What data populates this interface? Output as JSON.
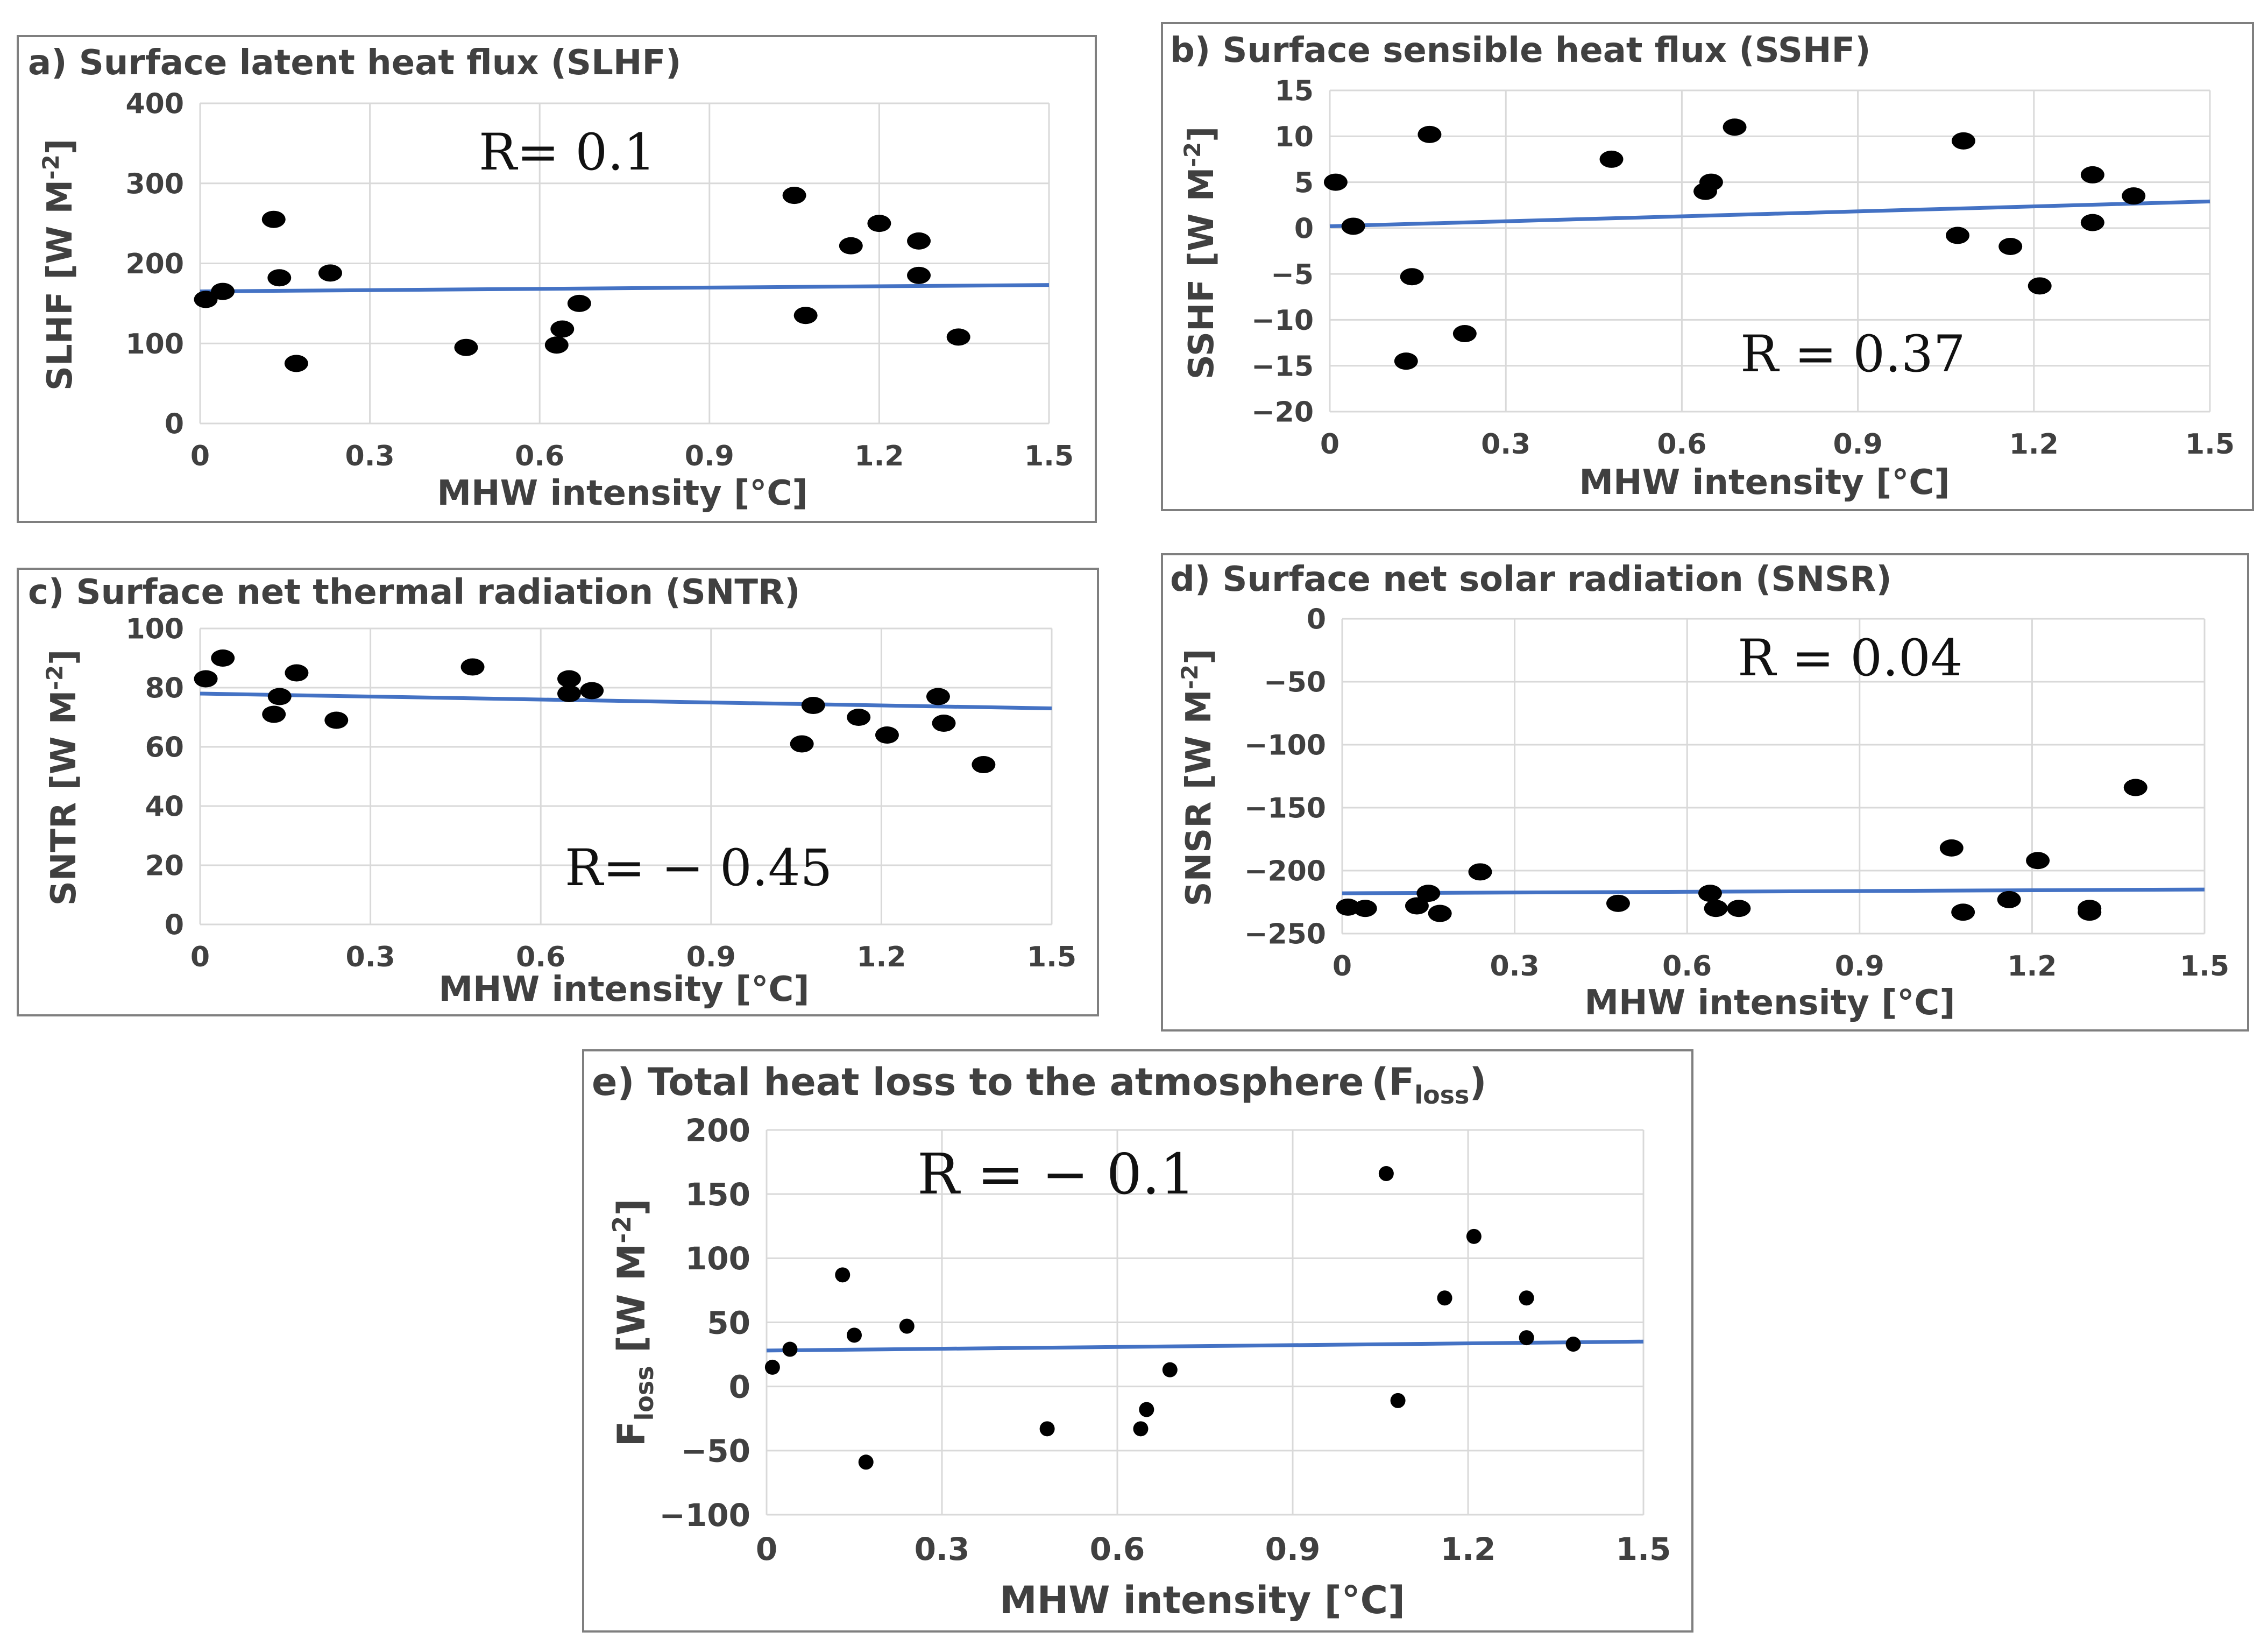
{
  "chart_data": [
    {
      "type": "scatter",
      "panel": "a",
      "title": "a) Surface latent heat flux (SLHF)",
      "xlabel": "MHW intensity [°C]",
      "ylabel": "SLHF [W M",
      "ylabel_sup": "-2",
      "ylabel_end": "]",
      "annotation": "R= 0.1",
      "xlim": [
        0,
        1.5
      ],
      "ylim": [
        0,
        400
      ],
      "x_ticks": [
        "0",
        "0.3",
        "0.6",
        "0.9",
        "1.2",
        "1.5"
      ],
      "y_ticks": [
        "400",
        "300",
        "200",
        "100",
        "0"
      ],
      "points": [
        [
          0.01,
          155
        ],
        [
          0.04,
          165
        ],
        [
          0.13,
          255
        ],
        [
          0.14,
          182
        ],
        [
          0.17,
          75
        ],
        [
          0.23,
          188
        ],
        [
          0.47,
          95
        ],
        [
          0.63,
          98
        ],
        [
          0.64,
          118
        ],
        [
          0.67,
          150
        ],
        [
          1.05,
          285
        ],
        [
          1.07,
          135
        ],
        [
          1.15,
          222
        ],
        [
          1.2,
          250
        ],
        [
          1.27,
          228
        ],
        [
          1.27,
          185
        ],
        [
          1.34,
          108
        ]
      ],
      "trendline": [
        [
          0,
          165
        ],
        [
          1.5,
          173
        ]
      ],
      "marker_color": "#000000",
      "trend_color": "#4472C4"
    },
    {
      "type": "scatter",
      "panel": "b",
      "title": "b) Surface sensible heat flux  (SSHF)",
      "xlabel": "MHW intensity [°C]",
      "ylabel": "SSHF [W M",
      "ylabel_sup": "-2",
      "ylabel_end": "]",
      "annotation": "R = 0.37",
      "xlim": [
        0,
        1.5
      ],
      "ylim": [
        -20,
        15
      ],
      "x_ticks": [
        "0",
        "0.3",
        "0.6",
        "0.9",
        "1.2",
        "1.5"
      ],
      "y_ticks": [
        "15",
        "10",
        "5",
        "0",
        "−5",
        "−10",
        "−15",
        "−20"
      ],
      "points": [
        [
          0.01,
          5
        ],
        [
          0.04,
          0.2
        ],
        [
          0.13,
          -14.5
        ],
        [
          0.14,
          -5.3
        ],
        [
          0.17,
          10.2
        ],
        [
          0.23,
          -11.5
        ],
        [
          0.48,
          7.5
        ],
        [
          0.64,
          4
        ],
        [
          0.65,
          5
        ],
        [
          0.69,
          11
        ],
        [
          1.07,
          -0.8
        ],
        [
          1.08,
          9.5
        ],
        [
          1.16,
          -2
        ],
        [
          1.21,
          -6.3
        ],
        [
          1.3,
          5.8
        ],
        [
          1.3,
          0.6
        ],
        [
          1.37,
          3.5
        ]
      ],
      "trendline": [
        [
          0,
          0.2
        ],
        [
          1.5,
          2.9
        ]
      ],
      "marker_color": "#000000",
      "trend_color": "#4472C4"
    },
    {
      "type": "scatter",
      "panel": "c",
      "title": "c) Surface net thermal radiation (SNTR)",
      "xlabel": "MHW intensity [°C]",
      "ylabel": "SNTR [W M",
      "ylabel_sup": "-2",
      "ylabel_end": "]",
      "annotation": "R= − 0.45",
      "xlim": [
        0,
        1.5
      ],
      "ylim": [
        0,
        100
      ],
      "x_ticks": [
        "0",
        "0.3",
        "0.6",
        "0.9",
        "1.2",
        "1.5"
      ],
      "y_ticks": [
        "100",
        "80",
        "60",
        "40",
        "20",
        "0"
      ],
      "points": [
        [
          0.01,
          83
        ],
        [
          0.04,
          90
        ],
        [
          0.13,
          71
        ],
        [
          0.14,
          77
        ],
        [
          0.17,
          85
        ],
        [
          0.24,
          69
        ],
        [
          0.48,
          87
        ],
        [
          0.65,
          78
        ],
        [
          0.65,
          83
        ],
        [
          0.69,
          79
        ],
        [
          1.06,
          61
        ],
        [
          1.08,
          74
        ],
        [
          1.16,
          70
        ],
        [
          1.21,
          64
        ],
        [
          1.3,
          77
        ],
        [
          1.31,
          68
        ],
        [
          1.38,
          54
        ]
      ],
      "trendline": [
        [
          0,
          78
        ],
        [
          1.5,
          73
        ]
      ],
      "marker_color": "#000000",
      "trend_color": "#4472C4"
    },
    {
      "type": "scatter",
      "panel": "d",
      "title": "d) Surface net solar radiation (SNSR)",
      "xlabel": "MHW intensity [°C]",
      "ylabel": "SNSR [W M",
      "ylabel_sup": "-2",
      "ylabel_end": "]",
      "annotation": "R = 0.04",
      "xlim": [
        0,
        1.5
      ],
      "ylim": [
        -250,
        0
      ],
      "x_ticks": [
        "0",
        "0.3",
        "0.6",
        "0.9",
        "1.2",
        "1.5"
      ],
      "y_ticks": [
        "0",
        "−50",
        "−100",
        "−150",
        "−200",
        "−250"
      ],
      "points": [
        [
          0.01,
          -229
        ],
        [
          0.04,
          -230
        ],
        [
          0.13,
          -228
        ],
        [
          0.15,
          -218
        ],
        [
          0.17,
          -234
        ],
        [
          0.24,
          -201
        ],
        [
          0.48,
          -226
        ],
        [
          0.64,
          -218
        ],
        [
          0.65,
          -230
        ],
        [
          0.69,
          -230
        ],
        [
          1.06,
          -182
        ],
        [
          1.08,
          -233
        ],
        [
          1.16,
          -223
        ],
        [
          1.21,
          -192
        ],
        [
          1.3,
          -230
        ],
        [
          1.3,
          -233
        ],
        [
          1.38,
          -134
        ]
      ],
      "trendline": [
        [
          0,
          -218
        ],
        [
          1.5,
          -215
        ]
      ],
      "marker_color": "#000000",
      "trend_color": "#4472C4"
    },
    {
      "type": "scatter",
      "panel": "e",
      "title": "e) Total heat loss to the atmosphere",
      "title_symbol": "(F",
      "title_sub": "loss",
      "title_end": ")",
      "xlabel": "MHW intensity [°C]",
      "ylabel_symbol": "F",
      "ylabel_sub": "loss",
      "ylabel": " [W M",
      "ylabel_sup": "-2",
      "ylabel_end": "]",
      "annotation": "R = − 0.1",
      "xlim": [
        0,
        1.5
      ],
      "ylim": [
        -100,
        200
      ],
      "x_ticks": [
        "0",
        "0.3",
        "0.6",
        "0.9",
        "1.2",
        "1.5"
      ],
      "y_ticks": [
        "200",
        "150",
        "100",
        "50",
        "0",
        "−50",
        "−100"
      ],
      "points": [
        [
          0.01,
          15
        ],
        [
          0.04,
          29
        ],
        [
          0.13,
          87
        ],
        [
          0.15,
          40
        ],
        [
          0.17,
          -59
        ],
        [
          0.24,
          47
        ],
        [
          0.48,
          -33
        ],
        [
          0.64,
          -33
        ],
        [
          0.65,
          -18
        ],
        [
          0.69,
          13
        ],
        [
          1.06,
          166
        ],
        [
          1.08,
          -11
        ],
        [
          1.16,
          69
        ],
        [
          1.21,
          117
        ],
        [
          1.3,
          69
        ],
        [
          1.3,
          38
        ],
        [
          1.38,
          33
        ]
      ],
      "trendline": [
        [
          0,
          28
        ],
        [
          1.5,
          35
        ]
      ],
      "marker_color": "#000000",
      "trend_color": "#4472C4"
    }
  ]
}
